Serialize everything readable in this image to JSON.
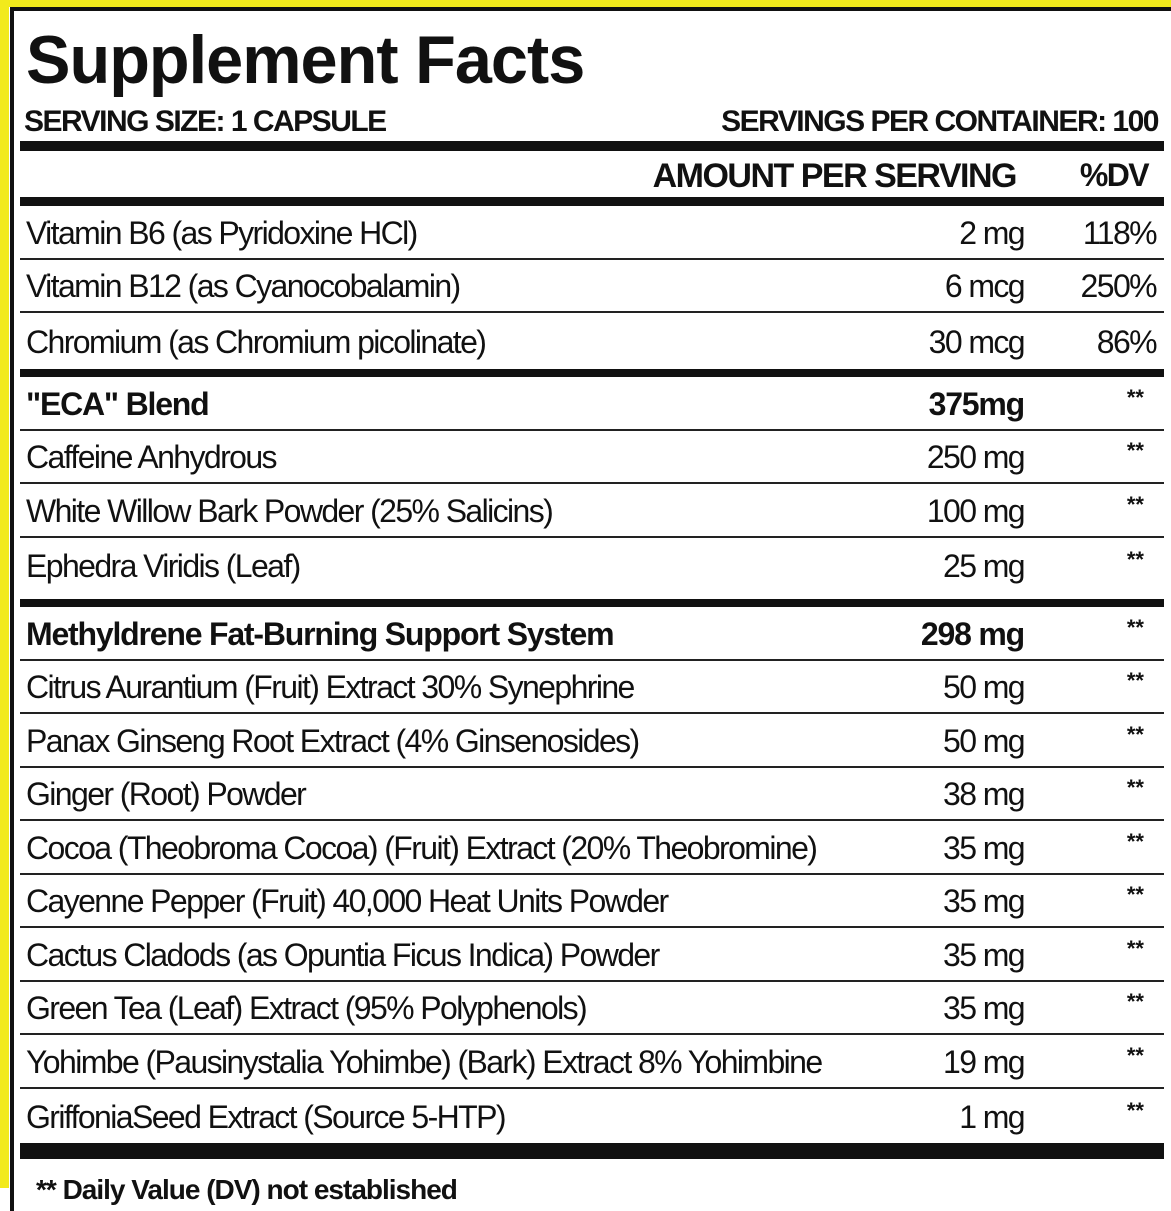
{
  "label": {
    "title": "Supplement Facts",
    "serving_size": "SERVING SIZE: 1 CAPSULE",
    "servings_per_container": "SERVINGS PER CONTAINER: 100",
    "header_amount": "AMOUNT PER SERVING",
    "header_dv": "%DV"
  },
  "vitamins": [
    {
      "name": "Vitamin B6 (as Pyridoxine HCl)",
      "amount": "2 mg",
      "dv": "118%"
    },
    {
      "name": "Vitamin B12 (as Cyanocobalamin)",
      "amount": "6 mcg",
      "dv": "250%"
    },
    {
      "name": "Chromium (as Chromium picolinate)",
      "amount": "30 mcg",
      "dv": "86%"
    }
  ],
  "eca_blend": [
    {
      "name": "\"ECA\" Blend",
      "amount": "375mg",
      "dv": "**"
    },
    {
      "name": "Caffeine Anhydrous",
      "amount": "250 mg",
      "dv": "**"
    },
    {
      "name": "White Willow Bark Powder (25% Salicins)",
      "amount": "100 mg",
      "dv": "**"
    },
    {
      "name": "Ephedra Viridis (Leaf)",
      "amount": "25 mg",
      "dv": "**"
    }
  ],
  "methyldrene": [
    {
      "name": "Methyldrene Fat-Burning Support System",
      "amount": "298 mg",
      "dv": "**"
    },
    {
      "name": "Citrus Aurantium (Fruit) Extract 30% Synephrine",
      "amount": "50 mg",
      "dv": "**"
    },
    {
      "name": "Panax Ginseng Root Extract (4% Ginsenosides)",
      "amount": "50 mg",
      "dv": "**"
    },
    {
      "name": "Ginger (Root) Powder",
      "amount": "38 mg",
      "dv": "**"
    },
    {
      "name": "Cocoa (Theobroma Cocoa) (Fruit) Extract (20% Theobromine)",
      "amount": "35 mg",
      "dv": "**"
    },
    {
      "name": "Cayenne Pepper (Fruit) 40,000 Heat Units Powder",
      "amount": "35 mg",
      "dv": "**"
    },
    {
      "name": "Cactus Cladods (as Opuntia Ficus Indica) Powder",
      "amount": "35 mg",
      "dv": "**"
    },
    {
      "name": "Green Tea (Leaf) Extract (95% Polyphenols)",
      "amount": "35 mg",
      "dv": "**"
    },
    {
      "name": "Yohimbe (Pausinystalia Yohimbe) (Bark) Extract 8% Yohimbine",
      "amount": "19 mg",
      "dv": "**"
    },
    {
      "name": "GriffoniaSeed Extract (Source 5-HTP)",
      "amount": "1 mg",
      "dv": "**"
    }
  ],
  "footer": "** Daily Value (DV) not established"
}
